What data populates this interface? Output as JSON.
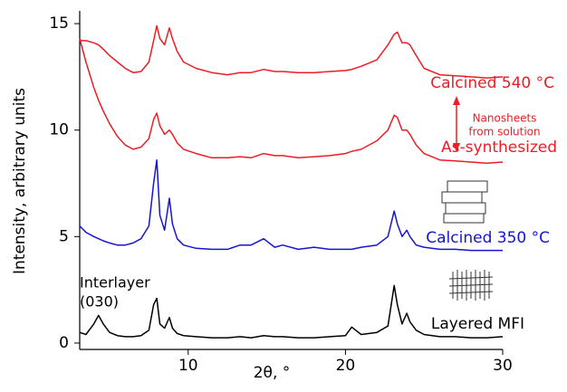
{
  "chart_data": {
    "type": "line",
    "xlabel": "2θ, °",
    "ylabel": "Intensity, arbitrary units",
    "xlim": [
      3.1,
      30
    ],
    "xticks": [
      10,
      20,
      30
    ],
    "ylim": [
      -0.3,
      15.6
    ],
    "yticks": [
      0,
      5,
      10,
      15
    ],
    "x": [
      3.1,
      3.5,
      4,
      4.3,
      4.6,
      5,
      5.5,
      6,
      6.5,
      7,
      7.5,
      7.8,
      8.0,
      8.2,
      8.5,
      8.8,
      9.0,
      9.3,
      9.7,
      10.5,
      11.5,
      12.5,
      13.3,
      14,
      14.8,
      15.5,
      16,
      17,
      18,
      19,
      20,
      20.4,
      21,
      22,
      22.7,
      23.1,
      23.3,
      23.6,
      23.9,
      24.1,
      24.5,
      25,
      26,
      27,
      28,
      29,
      30
    ],
    "series": [
      {
        "name": "Calcined 540 °C",
        "color": "#ee1c25",
        "values": [
          14.2,
          14.2,
          14.1,
          14.0,
          13.8,
          13.5,
          13.2,
          12.9,
          12.7,
          12.75,
          13.2,
          14.2,
          14.9,
          14.3,
          14.0,
          14.8,
          14.3,
          13.7,
          13.2,
          12.9,
          12.7,
          12.6,
          12.7,
          12.7,
          12.85,
          12.75,
          12.75,
          12.7,
          12.7,
          12.75,
          12.8,
          12.85,
          13.0,
          13.3,
          14.0,
          14.5,
          14.6,
          14.1,
          14.1,
          14.0,
          13.5,
          12.9,
          12.6,
          12.55,
          12.5,
          12.45,
          12.5
        ]
      },
      {
        "name": "As-synthesized",
        "color": "#ee1c25",
        "values": [
          14.3,
          13.2,
          12.0,
          11.4,
          10.9,
          10.3,
          9.7,
          9.3,
          9.1,
          9.2,
          9.6,
          10.5,
          10.8,
          10.2,
          9.8,
          10.0,
          9.8,
          9.4,
          9.1,
          8.9,
          8.7,
          8.7,
          8.75,
          8.7,
          8.9,
          8.8,
          8.8,
          8.7,
          8.75,
          8.8,
          8.9,
          9.0,
          9.1,
          9.5,
          10.0,
          10.7,
          10.6,
          10.0,
          10.0,
          9.8,
          9.3,
          8.9,
          8.6,
          8.55,
          8.5,
          8.45,
          8.5
        ]
      },
      {
        "name": "Calcined 350 °C",
        "color": "#1515d0",
        "values": [
          5.5,
          5.2,
          5.0,
          4.9,
          4.8,
          4.7,
          4.6,
          4.6,
          4.7,
          4.9,
          5.5,
          7.5,
          8.6,
          6.0,
          5.3,
          6.8,
          5.6,
          4.9,
          4.6,
          4.45,
          4.4,
          4.4,
          4.6,
          4.6,
          4.9,
          4.5,
          4.6,
          4.4,
          4.5,
          4.4,
          4.4,
          4.4,
          4.5,
          4.6,
          5.0,
          6.2,
          5.6,
          5.0,
          5.3,
          5.0,
          4.6,
          4.5,
          4.4,
          4.4,
          4.35,
          4.35,
          4.35
        ]
      },
      {
        "name": "Layered MFI",
        "color": "#000000",
        "values": [
          0.5,
          0.4,
          0.9,
          1.3,
          0.9,
          0.5,
          0.35,
          0.3,
          0.3,
          0.35,
          0.6,
          1.8,
          2.1,
          0.9,
          0.7,
          1.2,
          0.7,
          0.45,
          0.35,
          0.3,
          0.25,
          0.25,
          0.3,
          0.25,
          0.35,
          0.3,
          0.3,
          0.25,
          0.25,
          0.3,
          0.35,
          0.75,
          0.4,
          0.5,
          0.8,
          2.7,
          1.8,
          0.9,
          1.4,
          1.0,
          0.6,
          0.4,
          0.3,
          0.3,
          0.25,
          0.25,
          0.3
        ]
      }
    ],
    "annotations": [
      "Nanosheets",
      "from solution",
      "Interlayer",
      "(030)"
    ]
  }
}
